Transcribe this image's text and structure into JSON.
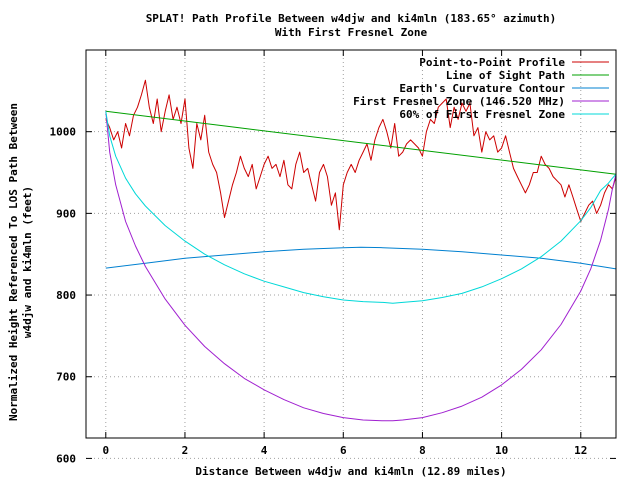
{
  "chart_data": {
    "type": "line",
    "title_line1": "SPLAT! Path Profile Between w4djw and ki4mln (183.65° azimuth)",
    "title_line2": "With First Fresnel Zone",
    "xlabel": "Distance Between w4djw and ki4mln (12.89 miles)",
    "ylabel_line1": "Normalized Height Referenced To LOS Path Between",
    "ylabel_line2": "w4djw and ki4mln (feet)",
    "xlim": [
      -0.5,
      12.89
    ],
    "ylim": [
      625,
      1100
    ],
    "x_ticks": [
      "0",
      "2",
      "4",
      "6",
      "8",
      "10",
      "12"
    ],
    "x_tick_values": [
      0,
      2,
      4,
      6,
      8,
      10,
      12
    ],
    "y_ticks": [
      "600",
      "700",
      "800",
      "900",
      "1000"
    ],
    "y_tick_values": [
      600,
      700,
      800,
      900,
      1000
    ],
    "grid": true,
    "legend_position": "top-right",
    "series": [
      {
        "name": "Point-to-Point Profile",
        "color": "#cc0000",
        "x": [
          0,
          0.1,
          0.2,
          0.3,
          0.4,
          0.5,
          0.6,
          0.7,
          0.8,
          0.9,
          1.0,
          1.1,
          1.2,
          1.3,
          1.4,
          1.5,
          1.6,
          1.7,
          1.8,
          1.9,
          2.0,
          2.1,
          2.2,
          2.3,
          2.4,
          2.5,
          2.6,
          2.7,
          2.8,
          2.9,
          3.0,
          3.1,
          3.2,
          3.3,
          3.4,
          3.5,
          3.6,
          3.7,
          3.8,
          3.9,
          4.0,
          4.1,
          4.2,
          4.3,
          4.4,
          4.5,
          4.6,
          4.7,
          4.8,
          4.9,
          5.0,
          5.1,
          5.2,
          5.3,
          5.4,
          5.5,
          5.6,
          5.7,
          5.8,
          5.9,
          6.0,
          6.1,
          6.2,
          6.3,
          6.4,
          6.5,
          6.6,
          6.7,
          6.8,
          6.9,
          7.0,
          7.1,
          7.2,
          7.3,
          7.4,
          7.5,
          7.6,
          7.7,
          7.8,
          7.9,
          8.0,
          8.1,
          8.2,
          8.3,
          8.4,
          8.5,
          8.6,
          8.7,
          8.8,
          8.9,
          9.0,
          9.1,
          9.2,
          9.3,
          9.4,
          9.5,
          9.6,
          9.7,
          9.8,
          9.9,
          10.0,
          10.1,
          10.2,
          10.3,
          10.4,
          10.5,
          10.6,
          10.7,
          10.8,
          10.9,
          11.0,
          11.1,
          11.2,
          11.3,
          11.4,
          11.5,
          11.6,
          11.7,
          11.8,
          11.9,
          12.0,
          12.1,
          12.2,
          12.3,
          12.4,
          12.5,
          12.6,
          12.7,
          12.8,
          12.89
        ],
        "values": [
          1015,
          1005,
          990,
          1000,
          980,
          1010,
          995,
          1020,
          1030,
          1045,
          1063,
          1030,
          1010,
          1040,
          1000,
          1025,
          1045,
          1015,
          1030,
          1010,
          1040,
          980,
          955,
          1010,
          990,
          1020,
          975,
          960,
          950,
          925,
          895,
          915,
          935,
          950,
          970,
          955,
          945,
          960,
          930,
          945,
          960,
          970,
          955,
          960,
          945,
          965,
          935,
          930,
          960,
          975,
          950,
          955,
          935,
          915,
          950,
          960,
          945,
          910,
          925,
          880,
          935,
          950,
          960,
          950,
          965,
          975,
          985,
          965,
          990,
          1005,
          1015,
          1000,
          980,
          1010,
          970,
          975,
          985,
          990,
          985,
          980,
          970,
          1000,
          1015,
          1010,
          1030,
          1035,
          1040,
          1005,
          1030,
          1015,
          1035,
          1025,
          1035,
          995,
          1005,
          975,
          1000,
          990,
          995,
          975,
          980,
          995,
          975,
          955,
          945,
          935,
          925,
          935,
          950,
          950,
          970,
          960,
          955,
          945,
          940,
          935,
          920,
          935,
          920,
          905,
          890,
          900,
          910,
          915,
          900,
          910,
          925,
          935,
          930,
          945
        ]
      },
      {
        "name": "Line of Sight Path",
        "color": "#00a000",
        "x": [
          0,
          12.89
        ],
        "values": [
          1025,
          948
        ]
      },
      {
        "name": "Earth's Curvature Contour",
        "color": "#0080d0",
        "x": [
          0,
          1,
          2,
          3,
          4,
          5,
          6,
          6.445,
          7,
          8,
          9,
          10,
          11,
          12,
          12.89
        ],
        "values": [
          833,
          839,
          845,
          849,
          853,
          856,
          858,
          858.5,
          858,
          856,
          853,
          849,
          845,
          839,
          832
        ]
      },
      {
        "name": "First Fresnel Zone (146.520 MHz)",
        "color": "#a020d0",
        "x": [
          0,
          0.1,
          0.25,
          0.5,
          0.75,
          1,
          1.5,
          2,
          2.5,
          3,
          3.5,
          4,
          4.5,
          5,
          5.5,
          6,
          6.5,
          7,
          7.25,
          7.5,
          8,
          8.5,
          9,
          9.5,
          10,
          10.5,
          11,
          11.5,
          12,
          12.25,
          12.5,
          12.7,
          12.8,
          12.89
        ],
        "values": [
          1025,
          975,
          935,
          890,
          860,
          835,
          795,
          763,
          737,
          716,
          698,
          684,
          672,
          662,
          655,
          650,
          647,
          646,
          646,
          647,
          650,
          656,
          664,
          675,
          690,
          709,
          733,
          764,
          805,
          832,
          867,
          905,
          930,
          948
        ]
      },
      {
        "name": "60% of First Fresnel Zone",
        "color": "#00d8d8",
        "x": [
          0,
          0.1,
          0.25,
          0.5,
          0.75,
          1,
          1.5,
          2,
          2.5,
          3,
          3.5,
          4,
          4.5,
          5,
          5.5,
          6,
          6.5,
          7,
          7.25,
          7.5,
          8,
          8.5,
          9,
          9.5,
          10,
          10.5,
          11,
          11.5,
          12,
          12.25,
          12.5,
          12.7,
          12.8,
          12.89
        ],
        "values": [
          1025,
          995,
          970,
          943,
          924,
          909,
          885,
          866,
          850,
          837,
          826,
          817,
          810,
          803,
          798,
          794,
          792,
          791,
          790,
          791,
          793,
          797,
          802,
          810,
          820,
          832,
          847,
          866,
          891,
          907,
          928,
          937,
          943,
          948
        ]
      }
    ]
  }
}
